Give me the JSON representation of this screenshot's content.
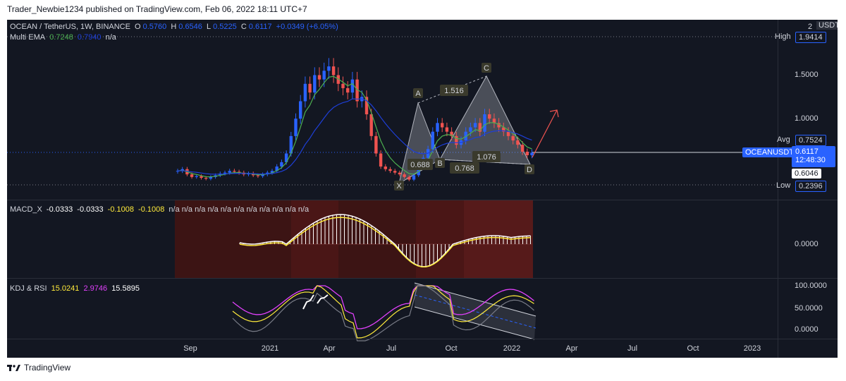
{
  "header": {
    "publisher": "Trader_Newbie1234 published on TradingView.com, Feb 06, 2022 18:11 UTC+7"
  },
  "main": {
    "symbol": "OCEAN / TetherUS, 1W, BINANCE",
    "ohlc": [
      {
        "k": "O",
        "v": "0.5760"
      },
      {
        "k": "H",
        "v": "0.6546"
      },
      {
        "k": "L",
        "v": "0.5225"
      },
      {
        "k": "C",
        "v": "0.6117"
      }
    ],
    "change": "+0.0349 (+6.05%)",
    "ema_label": "Multi EMA",
    "ema_values": [
      "0.7248",
      "0.7940",
      "n/a"
    ],
    "currency": "USDT",
    "axis_ticks": [
      "2",
      "1.5000",
      "1.0000"
    ],
    "high_label": "High",
    "high_value": "1.9414",
    "avg_label": "Avg",
    "avg_value": "0.7524",
    "ticker_label": "OCEANUSDT",
    "ticker_value": "0.6117",
    "countdown": "12:48:30",
    "prev_value": "0.6046",
    "low_label": "Low",
    "low_value": "0.2396",
    "pattern_points": [
      "X",
      "A",
      "B",
      "C",
      "D"
    ],
    "pattern_ratios": [
      "1.516",
      "0.688",
      "0.768",
      "1.076"
    ]
  },
  "macd": {
    "label": "MACD_X",
    "values": [
      "-0.0333",
      "-0.0333",
      "-0.1008",
      "-0.1008",
      "n/a n/a n/a n/a n/a n/a n/a n/a n/a n/a n/a"
    ],
    "axis_ticks": [
      "0.0000"
    ]
  },
  "kdj": {
    "label": "KDJ & RSI",
    "values": [
      "15.0241",
      "2.9746",
      "15.5895"
    ],
    "axis_ticks": [
      "100.0000",
      "50.0000",
      "0.0000"
    ]
  },
  "time_axis": [
    "Sep",
    "2021",
    "Apr",
    "Jul",
    "Oct",
    "2022",
    "Apr",
    "Jul",
    "Oct",
    "2023"
  ],
  "footer": {
    "brand": "TradingView"
  },
  "colors": {
    "bg": "#131722",
    "up": "#2962ff",
    "down": "#ef5350",
    "ema_fast": "#4caf50",
    "ema_slow": "#1e3fd8",
    "pattern": "#b2b5be",
    "accent": "#2962ff"
  }
}
